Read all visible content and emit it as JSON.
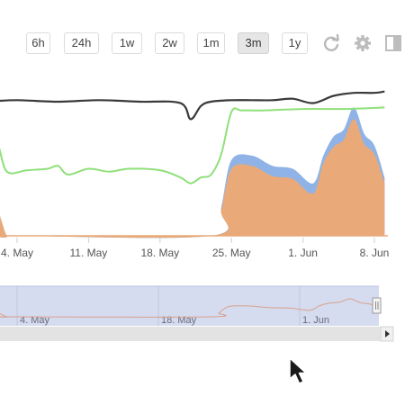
{
  "toolbar": {
    "ranges": [
      {
        "label": "6h",
        "active": false
      },
      {
        "label": "24h",
        "active": false
      },
      {
        "label": "1w",
        "active": false
      },
      {
        "label": "2w",
        "active": false
      },
      {
        "label": "1m",
        "active": false
      },
      {
        "label": "3m",
        "active": true
      },
      {
        "label": "1y",
        "active": false
      }
    ],
    "icons": [
      "refresh-icon",
      "gear-icon",
      "panel-toggle-icon"
    ]
  },
  "colors": {
    "dark_series": "#3a3a3a",
    "green_series": "#8fe07a",
    "blue_series": "#8fb3e6",
    "orange_series": "#e9a978",
    "navigator_bg": "#d5dcf0",
    "scrollbar": "#e3e3e3"
  },
  "chart_data": {
    "type": "area",
    "x_axis_type": "date",
    "x_tick_labels": [
      "4. May",
      "11. May",
      "18. May",
      "25. May",
      "1. Jun",
      "8. Jun"
    ],
    "x_ticks": [
      "2023-05-04",
      "2023-05-11",
      "2023-05-18",
      "2023-05-25",
      "2023-06-01",
      "2023-06-08"
    ],
    "series": [
      {
        "color": "#3a3a3a",
        "type": "line",
        "x": [
          "2023-05-01",
          "2023-05-04",
          "2023-05-08",
          "2023-05-12",
          "2023-05-16",
          "2023-05-20",
          "2023-05-21",
          "2023-05-22",
          "2023-05-23",
          "2023-05-25",
          "2023-05-27",
          "2023-05-29",
          "2023-05-31",
          "2023-06-02",
          "2023-06-04",
          "2023-06-06",
          "2023-06-08",
          "2023-06-09"
        ],
        "values": [
          0.92,
          0.93,
          0.92,
          0.93,
          0.92,
          0.91,
          0.8,
          0.89,
          0.92,
          0.93,
          0.93,
          0.93,
          0.94,
          0.91,
          0.96,
          0.98,
          0.98,
          0.99
        ]
      },
      {
        "color": "#8fe07a",
        "type": "line",
        "x": [
          "2023-05-01",
          "2023-05-02",
          "2023-05-03",
          "2023-05-05",
          "2023-05-07",
          "2023-05-08",
          "2023-05-09",
          "2023-05-11",
          "2023-05-13",
          "2023-05-15",
          "2023-05-18",
          "2023-05-20",
          "2023-05-21",
          "2023-05-22",
          "2023-05-23",
          "2023-05-24",
          "2023-05-25",
          "2023-05-26",
          "2023-05-28",
          "2023-06-01",
          "2023-06-05",
          "2023-06-09"
        ],
        "values": [
          0.43,
          0.63,
          0.44,
          0.45,
          0.46,
          0.48,
          0.42,
          0.46,
          0.44,
          0.46,
          0.45,
          0.4,
          0.36,
          0.4,
          0.42,
          0.56,
          0.85,
          0.86,
          0.86,
          0.87,
          0.87,
          0.88
        ]
      },
      {
        "color": "#8fb3e6",
        "type": "area",
        "x": [
          "2023-05-01",
          "2023-05-02",
          "2023-05-03",
          "2023-05-04",
          "2023-05-23",
          "2023-05-24",
          "2023-05-25",
          "2023-05-27",
          "2023-05-29",
          "2023-05-31",
          "2023-06-02",
          "2023-06-03",
          "2023-06-04",
          "2023-06-05",
          "2023-06-06",
          "2023-06-07",
          "2023-06-08",
          "2023-06-09"
        ],
        "values": [
          0,
          0.17,
          0,
          0,
          0,
          0.2,
          0.52,
          0.55,
          0.48,
          0.46,
          0.36,
          0.55,
          0.68,
          0.73,
          0.88,
          0.7,
          0.62,
          0.4
        ]
      },
      {
        "color": "#e9a978",
        "type": "area",
        "x": [
          "2023-05-01",
          "2023-05-02",
          "2023-05-03",
          "2023-05-04",
          "2023-05-23",
          "2023-05-24",
          "2023-05-25",
          "2023-05-27",
          "2023-05-29",
          "2023-05-31",
          "2023-06-02",
          "2023-06-03",
          "2023-06-04",
          "2023-06-05",
          "2023-06-06",
          "2023-06-07",
          "2023-06-08",
          "2023-06-09"
        ],
        "values": [
          0,
          0.17,
          0,
          0,
          0,
          0.18,
          0.46,
          0.48,
          0.41,
          0.39,
          0.29,
          0.5,
          0.61,
          0.66,
          0.8,
          0.63,
          0.56,
          0.36
        ]
      }
    ],
    "ylim": [
      0,
      1
    ],
    "grid": false,
    "navigator": {
      "labels": [
        "4. May",
        "18. May",
        "1. Jun"
      ],
      "tick_dates": [
        "2023-05-04",
        "2023-05-18",
        "2023-06-01"
      ],
      "selection_full": true
    }
  }
}
